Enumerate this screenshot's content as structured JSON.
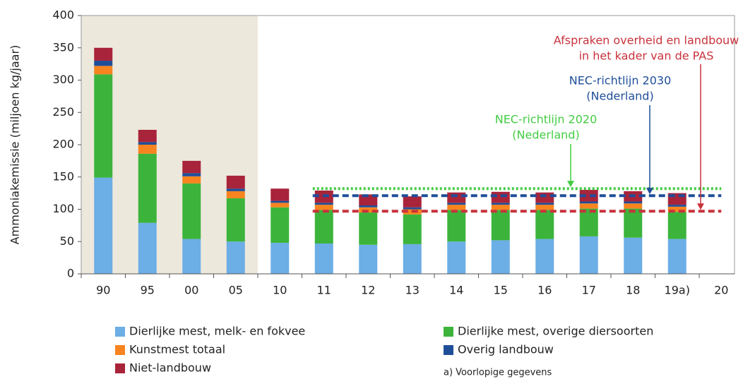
{
  "chart_data": {
    "type": "stacked_bar",
    "ylabel": "Ammoniakemissie (miljoen kg/jaar)",
    "categories": [
      "90",
      "95",
      "00",
      "05",
      "10",
      "11",
      "12",
      "13",
      "14",
      "15",
      "16",
      "17",
      "18",
      "19a)",
      "20"
    ],
    "series": [
      {
        "name": "Dierlijke mest, melk- en fokvee",
        "color": "#6caee6",
        "values": [
          149,
          79,
          54,
          50,
          48,
          47,
          45,
          46,
          50,
          52,
          54,
          58,
          56,
          54,
          null
        ]
      },
      {
        "name": "Dierlijke mest, overige diersoorten",
        "color": "#3cb43c",
        "values": [
          160,
          107,
          86,
          67,
          55,
          52,
          50,
          46,
          49,
          47,
          45,
          43,
          45,
          42,
          null
        ]
      },
      {
        "name": "Kunstmest totaal",
        "color": "#f7841e",
        "values": [
          13,
          14,
          11,
          11,
          7,
          8,
          8,
          8,
          8,
          8,
          8,
          8,
          8,
          8,
          null
        ]
      },
      {
        "name": "Overig landbouw",
        "color": "#1f4e99",
        "values": [
          8,
          4,
          5,
          4,
          3,
          3,
          3,
          3,
          3,
          3,
          3,
          3,
          3,
          3,
          null
        ]
      },
      {
        "name": "Niet-landbouw",
        "color": "#a8243a",
        "values": [
          20,
          19,
          19,
          20,
          19,
          19,
          17,
          17,
          16,
          17,
          16,
          18,
          16,
          18,
          null
        ]
      }
    ],
    "ylim": [
      0,
      400
    ],
    "yticks": [
      0,
      50,
      100,
      150,
      200,
      250,
      300,
      350,
      400
    ],
    "reference_lines": [
      {
        "value": 132,
        "color": "#44cc44",
        "style": "dotted",
        "start": "11",
        "end": "20",
        "label": [
          "NEC-richtlijn 2020",
          "(Nederland)"
        ]
      },
      {
        "value": 121,
        "color": "#1f4e99",
        "style": "dashed",
        "start": "11",
        "end": "20",
        "label": [
          "NEC-richtlijn 2030",
          "(Nederland)"
        ]
      },
      {
        "value": 97,
        "color": "#c8323c",
        "style": "dashed",
        "start": "11",
        "end": "20",
        "label": [
          "Afspraken overheid en landbouw",
          "in het kader van de PAS"
        ]
      }
    ],
    "note": "a) Voorlopige gegevens"
  }
}
